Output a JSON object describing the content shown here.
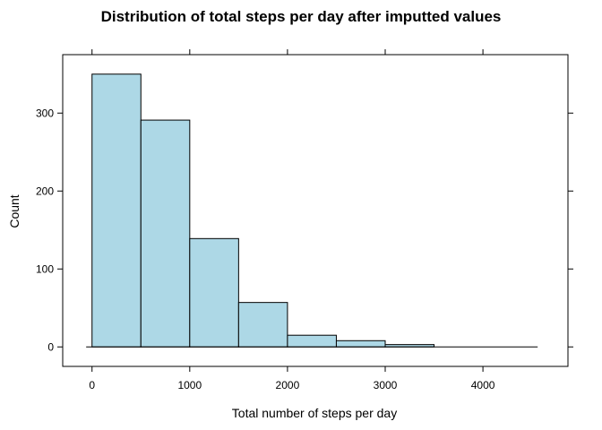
{
  "chart_data": {
    "type": "bar",
    "title": "Distribution of total steps per day after imputted values",
    "xlabel": "Total number of steps per day",
    "ylabel": "Count",
    "bins": [
      {
        "from": 0,
        "to": 500,
        "count": 350
      },
      {
        "from": 500,
        "to": 1000,
        "count": 291
      },
      {
        "from": 1000,
        "to": 1500,
        "count": 139
      },
      {
        "from": 1500,
        "to": 2000,
        "count": 57
      },
      {
        "from": 2000,
        "to": 2500,
        "count": 15
      },
      {
        "from": 2500,
        "to": 3000,
        "count": 8
      },
      {
        "from": 3000,
        "to": 3500,
        "count": 3
      },
      {
        "from": 3500,
        "to": 4000,
        "count": 0
      },
      {
        "from": 4000,
        "to": 4560,
        "count": 0
      }
    ],
    "xlim": [
      -300,
      4870
    ],
    "ylim": [
      -25,
      375
    ],
    "xticks": [
      0,
      1000,
      2000,
      3000,
      4000
    ],
    "xtick_labels": [
      "0",
      "1000",
      "2000",
      "3000",
      "4000"
    ],
    "yticks": [
      0,
      100,
      200,
      300
    ],
    "ytick_labels": [
      "0",
      "100",
      "200",
      "300"
    ],
    "baseline_range": [
      -60,
      4560
    ],
    "bar_color": "#add8e6",
    "edge_color": "#000000",
    "grid": false,
    "legend": "none"
  }
}
